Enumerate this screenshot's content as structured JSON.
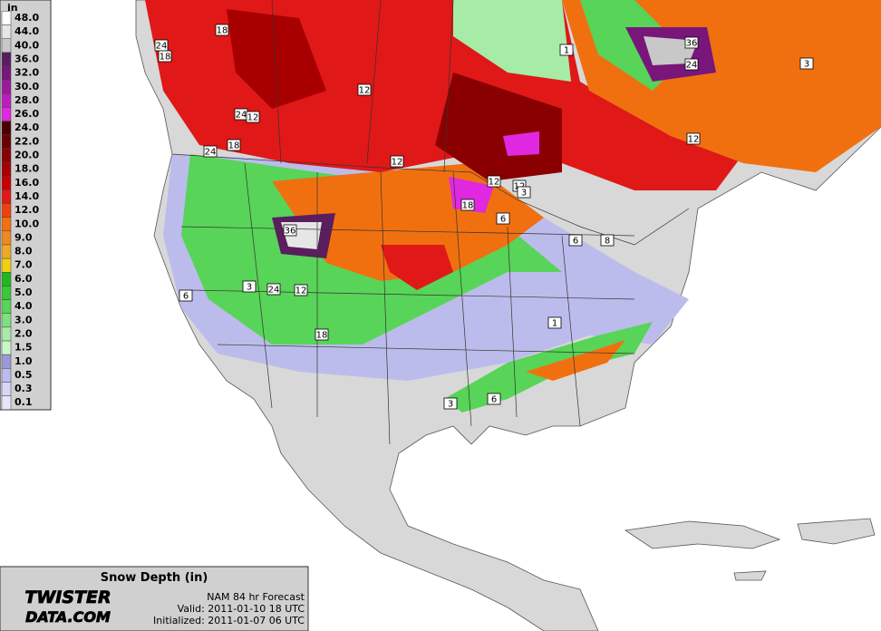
{
  "legend": {
    "unit": "in",
    "levels": [
      {
        "label": "48.0",
        "color": "#ffffff"
      },
      {
        "label": "44.0",
        "color": "#e6e6e6"
      },
      {
        "label": "40.0",
        "color": "#c8c8c8"
      },
      {
        "label": "36.0",
        "color": "#5a1e5e"
      },
      {
        "label": "32.0",
        "color": "#78167a"
      },
      {
        "label": "30.0",
        "color": "#9a1a9c"
      },
      {
        "label": "28.0",
        "color": "#bc1ebe"
      },
      {
        "label": "26.0",
        "color": "#e028e0"
      },
      {
        "label": "24.0",
        "color": "#4a0000"
      },
      {
        "label": "22.0",
        "color": "#6a0000"
      },
      {
        "label": "20.0",
        "color": "#8a0000"
      },
      {
        "label": "18.0",
        "color": "#a80000"
      },
      {
        "label": "16.0",
        "color": "#c80000"
      },
      {
        "label": "14.0",
        "color": "#e01818"
      },
      {
        "label": "12.0",
        "color": "#f04010"
      },
      {
        "label": "10.0",
        "color": "#f07010"
      },
      {
        "label": "9.0",
        "color": "#f08a20"
      },
      {
        "label": "8.0",
        "color": "#f0a828"
      },
      {
        "label": "7.0",
        "color": "#f0d010"
      },
      {
        "label": "6.0",
        "color": "#20b820"
      },
      {
        "label": "5.0",
        "color": "#38c838"
      },
      {
        "label": "4.0",
        "color": "#58d458"
      },
      {
        "label": "3.0",
        "color": "#7ee07e"
      },
      {
        "label": "2.0",
        "color": "#a6eca6"
      },
      {
        "label": "1.5",
        "color": "#c8f6c8"
      },
      {
        "label": "1.0",
        "color": "#9a9ad8"
      },
      {
        "label": "0.5",
        "color": "#bcbcec"
      },
      {
        "label": "0.3",
        "color": "#d6d6f6"
      },
      {
        "label": "0.1",
        "color": "#e6e6fa"
      }
    ]
  },
  "contour_labels": [
    "18",
    "24",
    "18",
    "12",
    "12",
    "1",
    "36",
    "24",
    "3",
    "12",
    "12",
    "18",
    "6",
    "6",
    "8",
    "36",
    "24",
    "12",
    "3",
    "6",
    "18",
    "1",
    "3",
    "6",
    "24",
    "18",
    "24",
    "12",
    "12",
    "3"
  ],
  "info": {
    "title": "Snow Depth (in)",
    "logo_top": "TWISTER",
    "logo_bottom": "DATA.COM",
    "model": "NAM 84 hr Forecast",
    "valid": "Valid: 2011-01-10 18 UTC",
    "initialized": "Initialized: 2011-01-07 06 UTC"
  }
}
